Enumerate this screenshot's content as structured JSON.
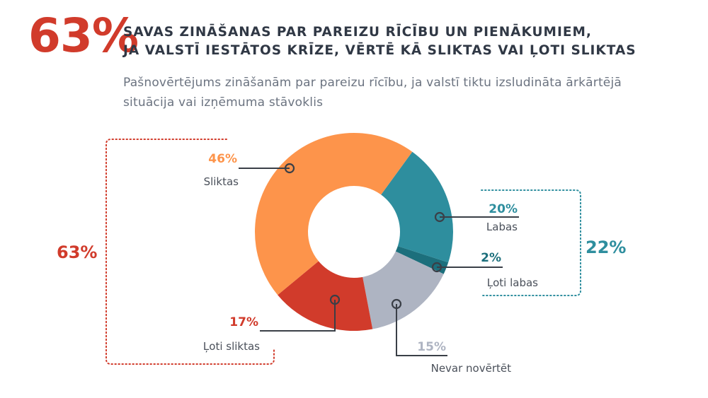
{
  "header": {
    "big_percent": "63%",
    "headline_line1": "SAVAS ZINĀŠANAS PAR PAREIZU RĪCĪBU UN PIENĀKUMIEM,",
    "headline_line2": "JA VALSTĪ IESTĀTOS KRĪZE, VĒRTĒ KĀ SLIKTAS VAI ĻOTI SLIKTAS",
    "subtitle_line1": "Pašnovērtējums zināšanām par pareizu rīcību, ja valstī tiktu izsludināta ārkārtējā",
    "subtitle_line2": "situācija vai izņēmuma stāvoklis"
  },
  "chart_data": {
    "type": "pie",
    "donut": true,
    "slices": [
      {
        "label": "Labas",
        "value": 20,
        "value_label": "20%",
        "color": "#2e8e9e"
      },
      {
        "label": "Ļoti labas",
        "value": 2,
        "value_label": "2%",
        "color": "#1c6f7c"
      },
      {
        "label": "Nevar novērtēt",
        "value": 15,
        "value_label": "15%",
        "color": "#aeb4c2"
      },
      {
        "label": "Ļoti sliktas",
        "value": 17,
        "value_label": "17%",
        "color": "#d13b2b"
      },
      {
        "label": "Sliktas",
        "value": 46,
        "value_label": "46%",
        "color": "#fd944b"
      }
    ],
    "groups": [
      {
        "value_label": "63%",
        "color": "#d13b2b",
        "side": "left"
      },
      {
        "value_label": "22%",
        "color": "#2e8e9e",
        "side": "right"
      }
    ]
  },
  "colors": {
    "label_gray": "#6b7a8c",
    "line_color": "#3a3f47",
    "text_dark": "#303845"
  }
}
